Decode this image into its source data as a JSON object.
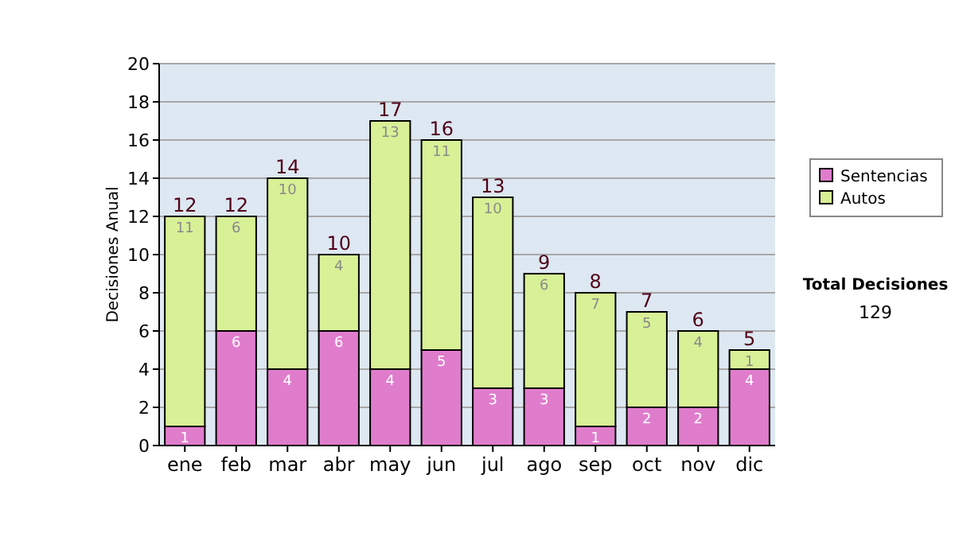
{
  "chart_data": {
    "type": "bar",
    "stacked": true,
    "ylabel": "Decisiones Anual",
    "categories": [
      "ene",
      "feb",
      "mar",
      "abr",
      "may",
      "jun",
      "jul",
      "ago",
      "sep",
      "oct",
      "nov",
      "dic"
    ],
    "series": [
      {
        "name": "Sentencias",
        "color": "#e07ccc",
        "values": [
          1,
          6,
          4,
          6,
          4,
          5,
          3,
          3,
          1,
          2,
          2,
          4
        ]
      },
      {
        "name": "Autos",
        "color": "#d8f096",
        "values": [
          11,
          6,
          10,
          4,
          13,
          11,
          10,
          6,
          7,
          5,
          4,
          1
        ]
      }
    ],
    "totals": [
      "12",
      "12",
      "14",
      "10",
      "17",
      "16",
      "13",
      "9",
      "8",
      "7",
      "6",
      "5"
    ],
    "data_labels": true,
    "ylim": [
      0,
      20
    ],
    "yticks": [
      0,
      2,
      4,
      6,
      8,
      10,
      12,
      14,
      16,
      18,
      20
    ],
    "grid": "y",
    "legend": "right",
    "annotations": [
      "Total Decisiones",
      "129"
    ]
  }
}
